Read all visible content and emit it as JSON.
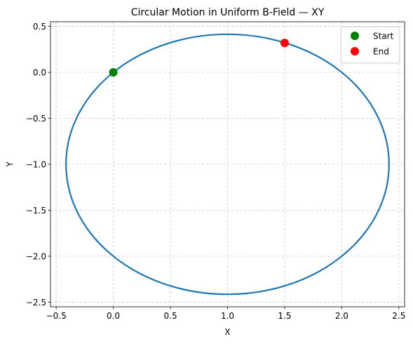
{
  "chart_data": {
    "type": "line",
    "title": "Circular Motion in Uniform B-Field — XY",
    "xlabel": "X",
    "ylabel": "Y",
    "xlim": [
      -0.55,
      2.55
    ],
    "ylim": [
      -2.55,
      0.55
    ],
    "x_ticks": [
      -0.5,
      0.0,
      0.5,
      1.0,
      1.5,
      2.0,
      2.5
    ],
    "x_tick_labels": [
      "−0.5",
      "0.0",
      "0.5",
      "1.0",
      "1.5",
      "2.0",
      "2.5"
    ],
    "y_ticks": [
      0.5,
      0.0,
      -0.5,
      -1.0,
      -1.5,
      -2.0,
      -2.5
    ],
    "y_tick_labels": [
      "0.5",
      "0.0",
      "−0.5",
      "−1.0",
      "−1.5",
      "−2.0",
      "−2.5"
    ],
    "grid": true,
    "legend_position": "top-right",
    "series": [
      {
        "kind": "trajectory",
        "shape": "circle",
        "center": [
          1.0,
          -1.0
        ],
        "radius_x": 1.414,
        "radius_y": 1.414,
        "color": "#1f77b4"
      },
      {
        "name": "Start",
        "kind": "marker",
        "x": 0.0,
        "y": 0.0,
        "color": "#008000"
      },
      {
        "name": "End",
        "kind": "marker",
        "x": 1.5,
        "y": 0.32,
        "color": "#ff0000"
      }
    ]
  }
}
